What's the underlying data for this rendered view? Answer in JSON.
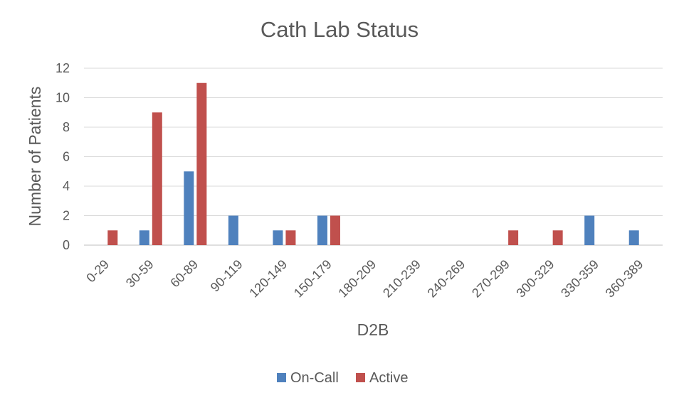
{
  "chart_data": {
    "type": "bar",
    "title": "Cath Lab Status",
    "xlabel": "D2B",
    "ylabel": "Number of Patients",
    "ylim": [
      0,
      12
    ],
    "y_ticks": [
      0,
      2,
      4,
      6,
      8,
      10,
      12
    ],
    "grid": true,
    "legend_position": "bottom",
    "categories": [
      "0-29",
      "30-59",
      "60-89",
      "90-119",
      "120-149",
      "150-179",
      "180-209",
      "210-239",
      "240-269",
      "270-299",
      "300-329",
      "330-359",
      "360-389"
    ],
    "series": [
      {
        "name": "On-Call",
        "color": "#4F81BD",
        "values": [
          0,
          1,
          5,
          2,
          1,
          2,
          0,
          0,
          0,
          0,
          0,
          2,
          1
        ]
      },
      {
        "name": "Active",
        "color": "#C0504D",
        "values": [
          1,
          9,
          11,
          0,
          1,
          2,
          0,
          0,
          0,
          1,
          1,
          0,
          0
        ]
      }
    ]
  }
}
